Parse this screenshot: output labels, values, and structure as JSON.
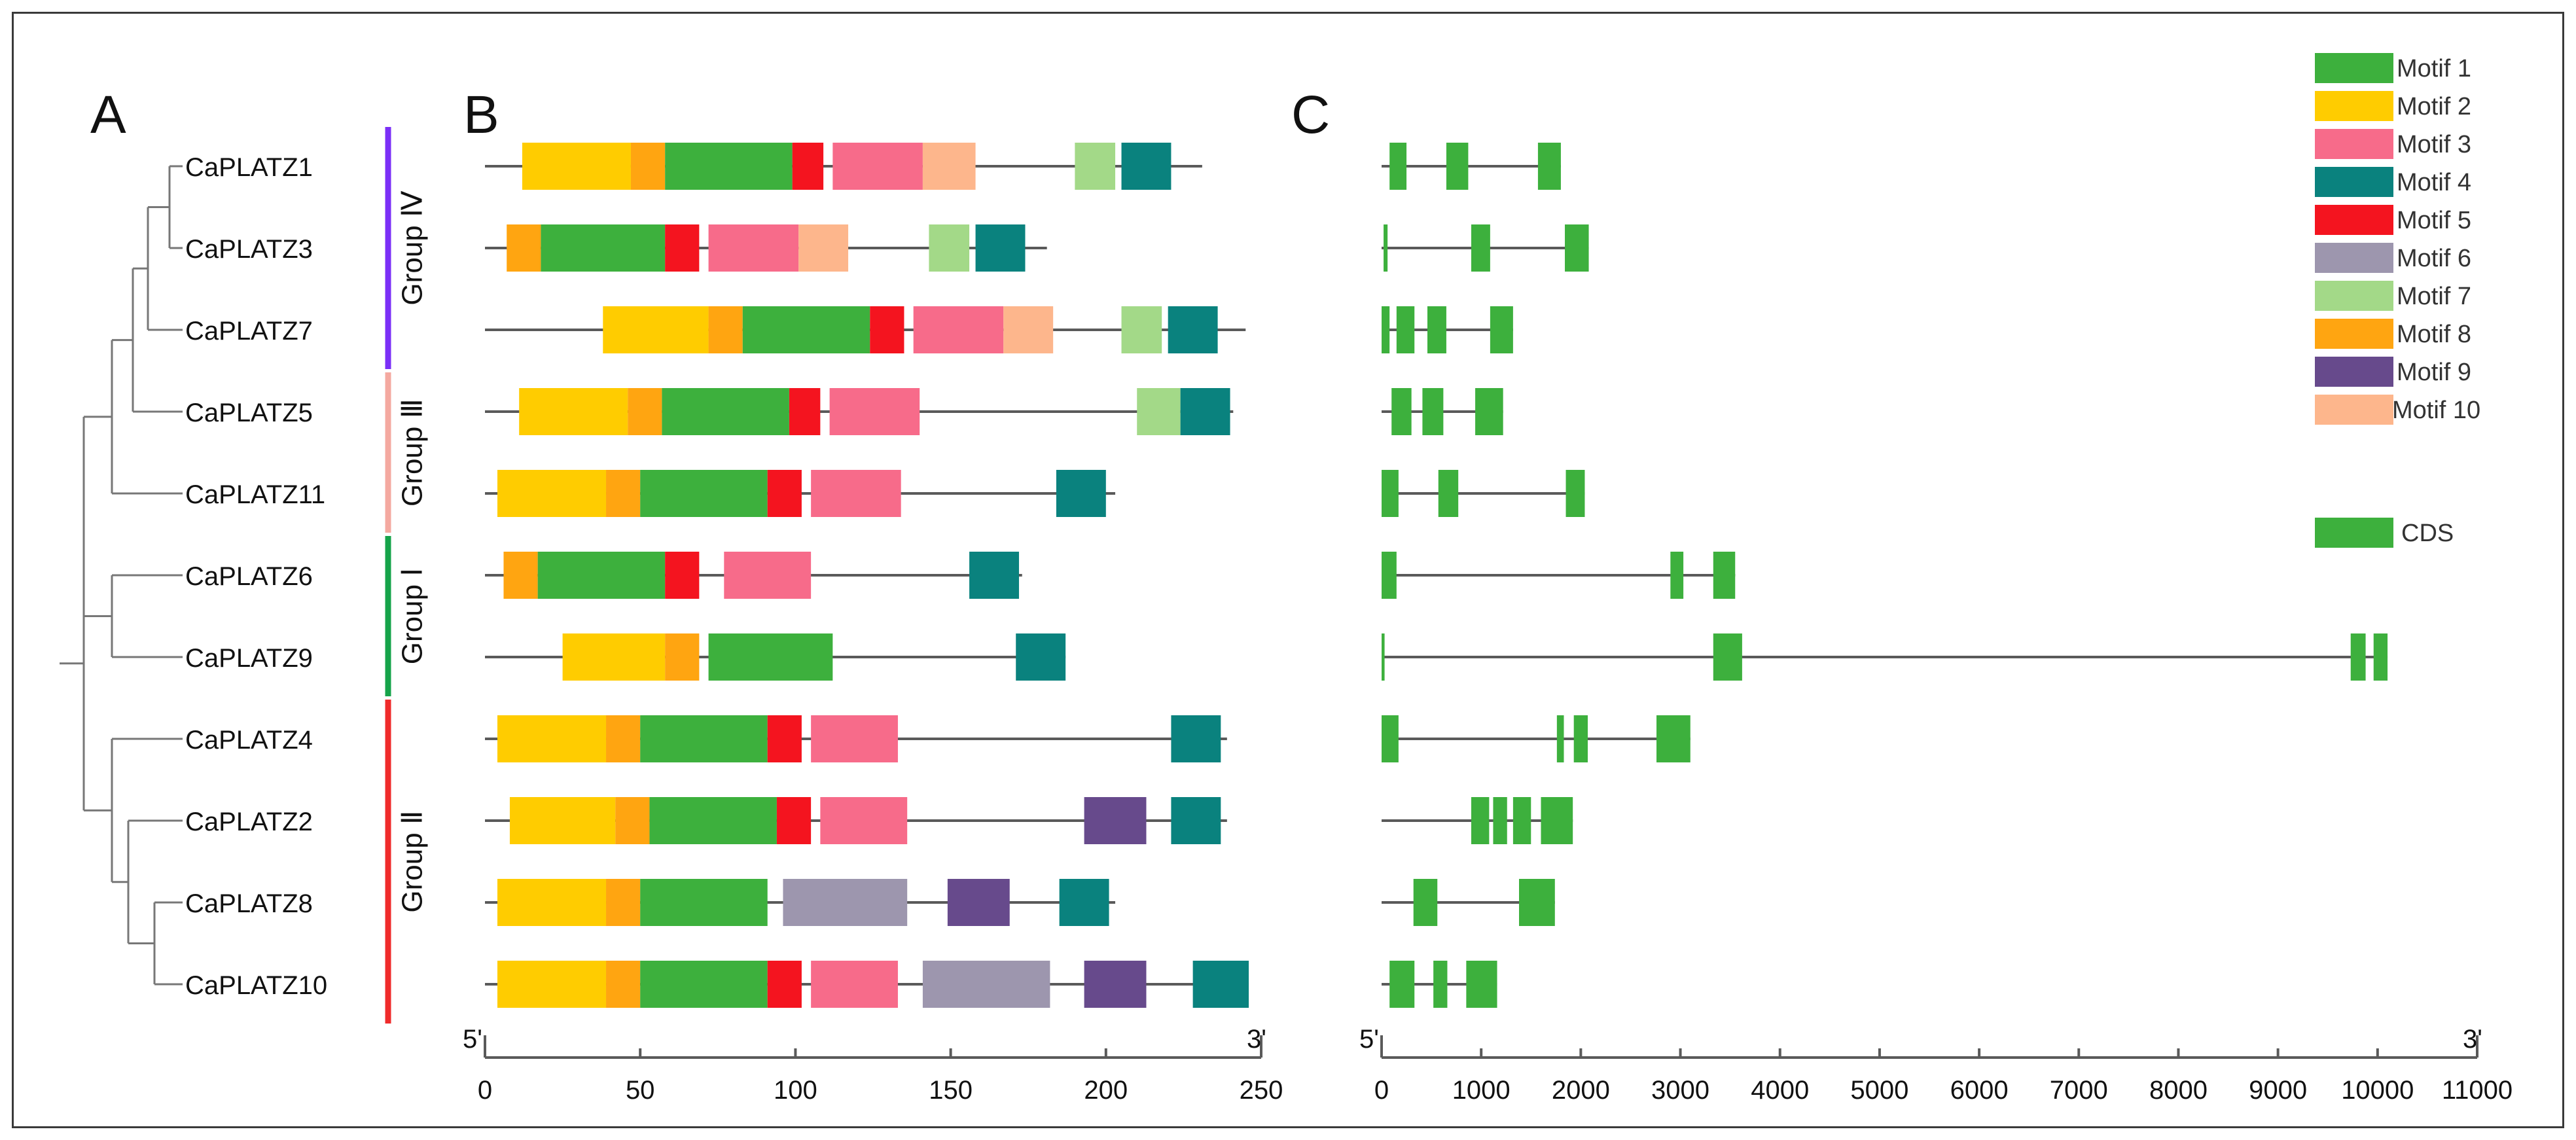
{
  "panels": {
    "a": "A",
    "b": "B",
    "c": "C"
  },
  "genes": [
    "CaPLATZ1",
    "CaPLATZ3",
    "CaPLATZ7",
    "CaPLATZ5",
    "CaPLATZ11",
    "CaPLATZ6",
    "CaPLATZ9",
    "CaPLATZ4",
    "CaPLATZ2",
    "CaPLATZ8",
    "CaPLATZ10"
  ],
  "groups": [
    {
      "label": "Group Ⅳ",
      "color": "#7B2FF7",
      "first": 0,
      "last": 2
    },
    {
      "label": "Group Ⅲ",
      "color": "#F4A9A0",
      "first": 3,
      "last": 4
    },
    {
      "label": "Group Ⅰ",
      "color": "#16A34A",
      "first": 5,
      "last": 6
    },
    {
      "label": "Group Ⅱ",
      "color": "#EF2B2B",
      "first": 7,
      "last": 10
    }
  ],
  "motif_legend": [
    {
      "id": 1,
      "label": "Motif 1",
      "color": "#3DB03D"
    },
    {
      "id": 2,
      "label": "Motif 2",
      "color": "#FFCC00"
    },
    {
      "id": 3,
      "label": "Motif 3",
      "color": "#F76B8A"
    },
    {
      "id": 4,
      "label": "Motif 4",
      "color": "#0A827E"
    },
    {
      "id": 5,
      "label": "Motif 5",
      "color": "#F4141F"
    },
    {
      "id": 6,
      "label": "Motif 6",
      "color": "#9D96AE"
    },
    {
      "id": 7,
      "label": "Motif 7",
      "color": "#A3D988"
    },
    {
      "id": 8,
      "label": "Motif 8",
      "color": "#FFA511"
    },
    {
      "id": 9,
      "label": "Motif 9",
      "color": "#674A8C"
    },
    {
      "id": 10,
      "label": "Motif 10",
      "color": "#FDB68C"
    }
  ],
  "cds_legend": {
    "label": "CDS",
    "color": "#3DB03D"
  },
  "motif_axis": {
    "min": 0,
    "max": 250,
    "ticks": [
      0,
      50,
      100,
      150,
      200,
      250
    ],
    "end5": "5'",
    "end3": "3'"
  },
  "gene_axis": {
    "min": 0,
    "max": 11000,
    "ticks": [
      0,
      1000,
      2000,
      3000,
      4000,
      5000,
      6000,
      7000,
      8000,
      9000,
      10000,
      11000
    ],
    "end5": "5'",
    "end3": "3'"
  },
  "chart_data": {
    "type": "gene-structure",
    "motif_proteins": [
      {
        "gene": "CaPLATZ1",
        "length": 231,
        "motifs": [
          [
            2,
            12,
            47
          ],
          [
            8,
            47,
            58
          ],
          [
            1,
            58,
            99
          ],
          [
            5,
            99,
            109
          ],
          [
            3,
            112,
            141
          ],
          [
            10,
            141,
            158
          ],
          [
            7,
            190,
            203
          ],
          [
            4,
            205,
            221
          ]
        ]
      },
      {
        "gene": "CaPLATZ3",
        "length": 181,
        "motifs": [
          [
            8,
            7,
            18
          ],
          [
            1,
            18,
            58
          ],
          [
            5,
            58,
            69
          ],
          [
            3,
            72,
            101
          ],
          [
            10,
            101,
            117
          ],
          [
            7,
            143,
            156
          ],
          [
            4,
            158,
            174
          ]
        ]
      },
      {
        "gene": "CaPLATZ7",
        "length": 245,
        "motifs": [
          [
            2,
            38,
            72
          ],
          [
            8,
            72,
            83
          ],
          [
            1,
            83,
            124
          ],
          [
            5,
            124,
            135
          ],
          [
            3,
            138,
            167
          ],
          [
            10,
            167,
            183
          ],
          [
            7,
            205,
            218
          ],
          [
            4,
            220,
            236
          ]
        ]
      },
      {
        "gene": "CaPLATZ5",
        "length": 241,
        "motifs": [
          [
            2,
            11,
            46
          ],
          [
            8,
            46,
            57
          ],
          [
            1,
            57,
            98
          ],
          [
            5,
            98,
            108
          ],
          [
            3,
            111,
            140
          ],
          [
            7,
            210,
            224
          ],
          [
            4,
            224,
            240
          ]
        ]
      },
      {
        "gene": "CaPLATZ11",
        "length": 203,
        "motifs": [
          [
            2,
            4,
            39
          ],
          [
            8,
            39,
            50
          ],
          [
            1,
            50,
            91
          ],
          [
            5,
            91,
            102
          ],
          [
            3,
            105,
            134
          ],
          [
            4,
            184,
            200
          ]
        ]
      },
      {
        "gene": "CaPLATZ6",
        "length": 173,
        "motifs": [
          [
            8,
            6,
            17
          ],
          [
            1,
            17,
            58
          ],
          [
            5,
            58,
            69
          ],
          [
            3,
            77,
            105
          ],
          [
            4,
            156,
            172
          ]
        ]
      },
      {
        "gene": "CaPLATZ9",
        "length": 187,
        "motifs": [
          [
            2,
            25,
            58
          ],
          [
            8,
            58,
            69
          ],
          [
            1,
            72,
            112
          ],
          [
            4,
            171,
            187
          ]
        ]
      },
      {
        "gene": "CaPLATZ4",
        "length": 239,
        "motifs": [
          [
            2,
            4,
            39
          ],
          [
            8,
            39,
            50
          ],
          [
            1,
            50,
            91
          ],
          [
            5,
            91,
            102
          ],
          [
            3,
            105,
            133
          ],
          [
            4,
            221,
            237
          ]
        ]
      },
      {
        "gene": "CaPLATZ2",
        "length": 239,
        "motifs": [
          [
            2,
            8,
            42
          ],
          [
            8,
            42,
            53
          ],
          [
            1,
            53,
            94
          ],
          [
            5,
            94,
            105
          ],
          [
            3,
            108,
            136
          ],
          [
            9,
            193,
            213
          ],
          [
            4,
            221,
            237
          ]
        ]
      },
      {
        "gene": "CaPLATZ8",
        "length": 203,
        "motifs": [
          [
            2,
            4,
            39
          ],
          [
            8,
            39,
            50
          ],
          [
            1,
            50,
            91
          ],
          [
            6,
            96,
            136
          ],
          [
            9,
            149,
            169
          ],
          [
            4,
            185,
            201
          ]
        ]
      },
      {
        "gene": "CaPLATZ10",
        "length": 246,
        "motifs": [
          [
            2,
            4,
            39
          ],
          [
            8,
            39,
            50
          ],
          [
            1,
            50,
            91
          ],
          [
            5,
            91,
            102
          ],
          [
            3,
            105,
            133
          ],
          [
            6,
            141,
            182
          ],
          [
            9,
            193,
            213
          ],
          [
            4,
            228,
            246
          ]
        ]
      }
    ],
    "gene_structures": [
      {
        "gene": "CaPLATZ1",
        "length": 1800,
        "cds": [
          [
            80,
            250
          ],
          [
            650,
            870
          ],
          [
            1570,
            1800
          ]
        ]
      },
      {
        "gene": "CaPLATZ3",
        "length": 2080,
        "cds": [
          [
            20,
            60
          ],
          [
            900,
            1090
          ],
          [
            1840,
            2080
          ]
        ]
      },
      {
        "gene": "CaPLATZ7",
        "length": 1320,
        "cds": [
          [
            0,
            80
          ],
          [
            150,
            330
          ],
          [
            460,
            650
          ],
          [
            1090,
            1320
          ]
        ]
      },
      {
        "gene": "CaPLATZ5",
        "length": 1220,
        "cds": [
          [
            100,
            300
          ],
          [
            410,
            620
          ],
          [
            940,
            1220
          ]
        ]
      },
      {
        "gene": "CaPLATZ11",
        "length": 2040,
        "cds": [
          [
            0,
            170
          ],
          [
            570,
            770
          ],
          [
            1850,
            2040
          ]
        ]
      },
      {
        "gene": "CaPLATZ6",
        "length": 3550,
        "cds": [
          [
            0,
            150
          ],
          [
            2900,
            3030
          ],
          [
            3330,
            3550
          ]
        ]
      },
      {
        "gene": "CaPLATZ9",
        "length": 10100,
        "cds": [
          [
            0,
            30
          ],
          [
            3330,
            3620
          ],
          [
            9730,
            9880
          ],
          [
            9960,
            10100
          ]
        ]
      },
      {
        "gene": "CaPLATZ4",
        "length": 3100,
        "cds": [
          [
            0,
            170
          ],
          [
            1760,
            1830
          ],
          [
            1930,
            2070
          ],
          [
            2760,
            3100
          ]
        ]
      },
      {
        "gene": "CaPLATZ2",
        "length": 1920,
        "cds": [
          [
            900,
            1080
          ],
          [
            1120,
            1260
          ],
          [
            1320,
            1500
          ],
          [
            1600,
            1920
          ]
        ]
      },
      {
        "gene": "CaPLATZ8",
        "length": 1740,
        "cds": [
          [
            320,
            560
          ],
          [
            1380,
            1740
          ]
        ]
      },
      {
        "gene": "CaPLATZ10",
        "length": 1160,
        "cds": [
          [
            80,
            330
          ],
          [
            520,
            660
          ],
          [
            850,
            1160
          ]
        ]
      }
    ]
  }
}
